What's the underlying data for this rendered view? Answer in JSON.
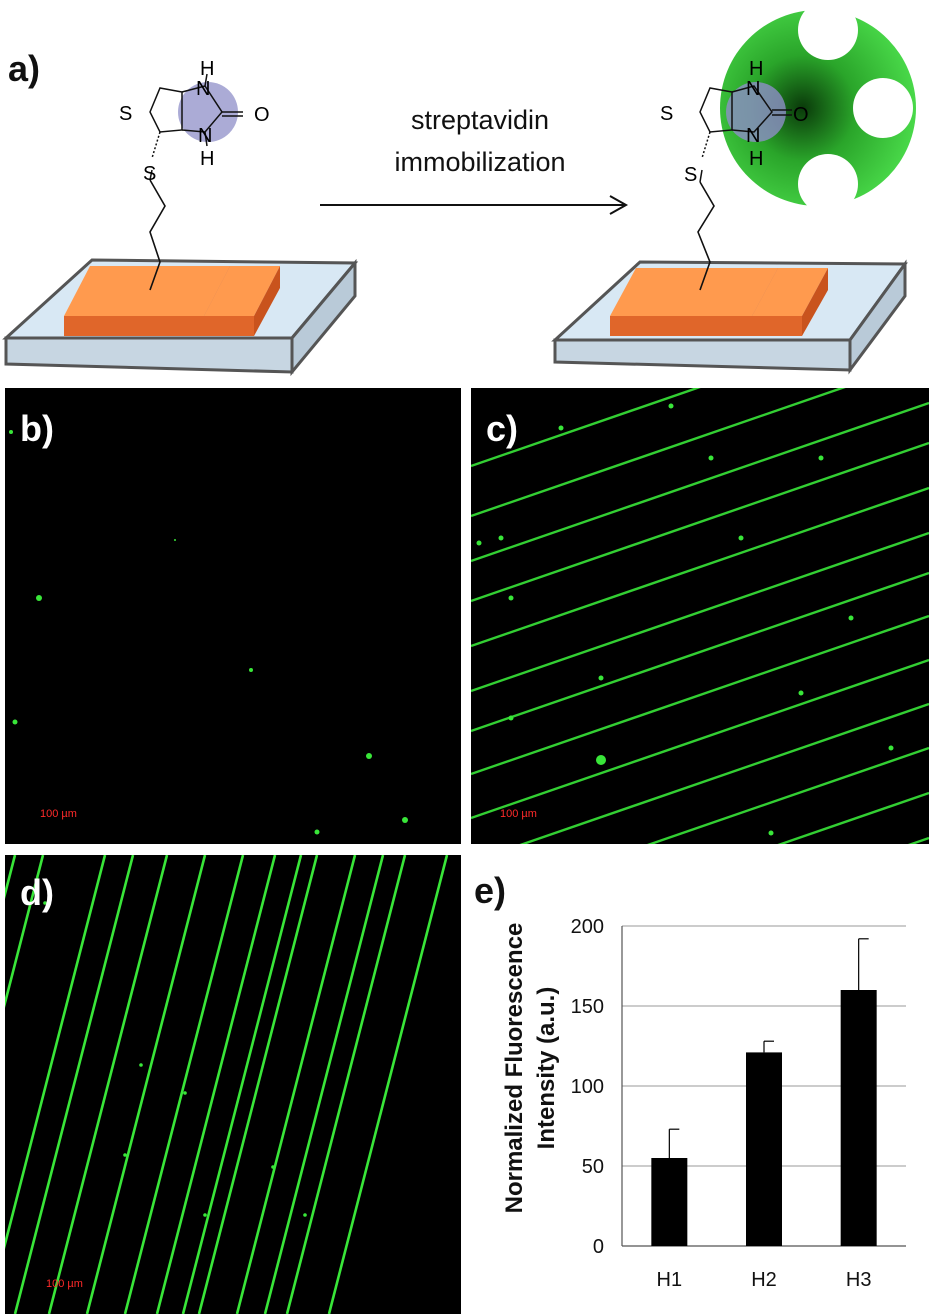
{
  "panels": {
    "a": {
      "label": "a)"
    },
    "b": {
      "label": "b)",
      "scalebar": "100 µm"
    },
    "c": {
      "label": "c)",
      "scalebar": "100 µm"
    },
    "d": {
      "label": "d)",
      "scalebar": "100 µm"
    },
    "e": {
      "label": "e)"
    }
  },
  "scheme": {
    "arrow_text_line1": "streptavidin",
    "arrow_text_line2": "immobilization",
    "atoms": {
      "S": "S",
      "N": "N",
      "H": "H",
      "O": "O"
    }
  },
  "colors": {
    "fluorescence": "#39e639",
    "electrode": "#f07a32",
    "substrate": "#d8e8f4",
    "streptavidin": "#33cc33",
    "biotin_highlight": "#8f8fc8",
    "bar": "#000000"
  },
  "chart_data": {
    "type": "bar",
    "categories": [
      "H1",
      "H2",
      "H3"
    ],
    "values": [
      55,
      121,
      160
    ],
    "errors": [
      18,
      7,
      32
    ],
    "ylabel_line1": "Normalized Fluorescence",
    "ylabel_line2": "Intensity (a.u.)",
    "xlabel": "",
    "ylim": [
      0,
      200
    ],
    "yticks": [
      0,
      50,
      100,
      150,
      200
    ],
    "grid": true
  }
}
